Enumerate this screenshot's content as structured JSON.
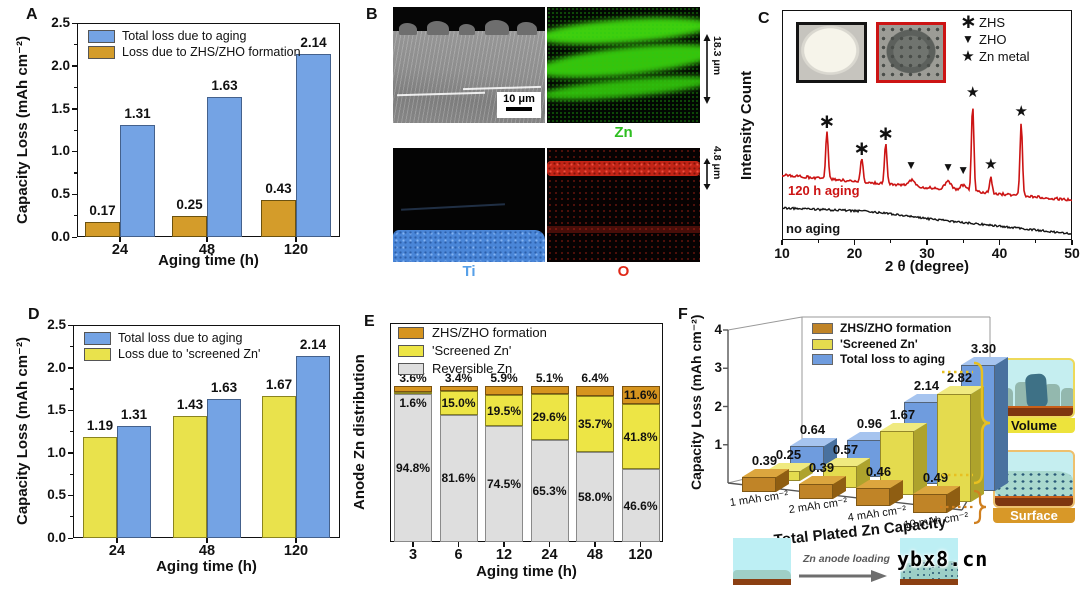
{
  "watermark": "ybx8.cn",
  "panels": {
    "B": {
      "tag": "B",
      "scale_bar": "10 μm",
      "label_zn": "Zn",
      "label_ti": "Ti",
      "label_o": "O",
      "thickness_zn_layer": "18.3 μm",
      "thickness_oxide_layer": "4.8 μm"
    },
    "F": {
      "inset_volume": "Volume",
      "inset_surface": "Surface",
      "bottom_caption": "Zn anode loading"
    }
  },
  "chart_data": [
    {
      "panel": "A",
      "type": "bar",
      "xlabel": "Aging time (h)",
      "ylabel": "Capacity Loss (mAh cm⁻²)",
      "ylim": [
        0,
        2.5
      ],
      "yticks": [
        0,
        0.5,
        1,
        1.5,
        2,
        2.5
      ],
      "categories": [
        "24",
        "48",
        "120"
      ],
      "series": [
        {
          "name": "Loss due to ZHS/ZHO formation",
          "color": "#D49C2A",
          "border": "#6b5210",
          "values": [
            0.17,
            0.25,
            0.43
          ]
        },
        {
          "name": "Total loss due to aging",
          "color": "#74A3E4",
          "border": "#44618C",
          "values": [
            1.31,
            1.63,
            2.14
          ]
        }
      ],
      "legend": [
        {
          "label": "Total loss due to aging",
          "color": "#74A3E4"
        },
        {
          "label": "Loss due to ZHS/ZHO formation",
          "color": "#D49C2A"
        }
      ]
    },
    {
      "panel": "C",
      "type": "line",
      "xlabel": "2 θ (degree)",
      "ylabel": "Intensity Count",
      "xlim": [
        10,
        50
      ],
      "xticks": [
        10,
        20,
        30,
        40,
        50
      ],
      "series": [
        {
          "name": "120 h aging",
          "color": "#CC1414"
        },
        {
          "name": "no aging",
          "color": "#141414"
        }
      ],
      "legend": [
        {
          "symbol": "∗",
          "label": "ZHS"
        },
        {
          "symbol": "▼",
          "label": "ZHO"
        },
        {
          "symbol": "★",
          "label": "Zn metal"
        }
      ],
      "peaks": [
        {
          "two_theta": 16.2,
          "height": 1.0,
          "phase": "ZHS"
        },
        {
          "two_theta": 21.0,
          "height": 0.5,
          "phase": "ZHS"
        },
        {
          "two_theta": 24.3,
          "height": 0.85,
          "phase": "ZHS"
        },
        {
          "two_theta": 27.8,
          "height": 0.13,
          "phase": "ZHO"
        },
        {
          "two_theta": 32.9,
          "height": 0.16,
          "phase": "ZHO"
        },
        {
          "two_theta": 35.0,
          "height": 0.11,
          "phase": "ZHO"
        },
        {
          "two_theta": 36.3,
          "height": 1.8,
          "phase": "Zn metal"
        },
        {
          "two_theta": 38.8,
          "height": 0.34,
          "phase": "Zn metal"
        },
        {
          "two_theta": 43.0,
          "height": 1.5,
          "phase": "Zn metal"
        }
      ]
    },
    {
      "panel": "D",
      "type": "bar",
      "xlabel": "Aging time (h)",
      "ylabel": "Capacity Loss (mAh cm⁻²)",
      "ylim": [
        0,
        2.5
      ],
      "yticks": [
        0,
        0.5,
        1,
        1.5,
        2,
        2.5
      ],
      "categories": [
        "24",
        "48",
        "120"
      ],
      "series": [
        {
          "name": "Loss due to 'screened Zn'",
          "color": "#E9E24C",
          "border": "#8a8420",
          "values": [
            1.19,
            1.43,
            1.67
          ]
        },
        {
          "name": "Total loss due to aging",
          "color": "#74A3E4",
          "border": "#44618C",
          "values": [
            1.31,
            1.63,
            2.14
          ]
        }
      ],
      "legend": [
        {
          "label": "Total loss due to aging",
          "color": "#74A3E4"
        },
        {
          "label": "Loss due to 'screened Zn'",
          "color": "#E9E24C"
        }
      ]
    },
    {
      "panel": "E",
      "type": "stacked-bar",
      "unit": "%",
      "xlabel": "Aging time (h)",
      "ylabel": "Anode Zn distribution",
      "categories": [
        "3",
        "6",
        "12",
        "24",
        "48",
        "120"
      ],
      "series": [
        {
          "name": "Reversible Zn",
          "color": "#DEDEDE",
          "border": "#8a8a8a",
          "values": [
            94.8,
            81.6,
            74.5,
            65.3,
            58.0,
            46.6
          ]
        },
        {
          "name": "'Screened Zn'",
          "color": "#EDE545",
          "border": "#8a8420",
          "values": [
            1.6,
            15.0,
            19.5,
            29.6,
            35.7,
            41.8
          ]
        },
        {
          "name": "ZHS/ZHO formation",
          "color": "#D6941E",
          "border": "#7a5210",
          "values": [
            3.6,
            3.4,
            5.9,
            5.1,
            6.4,
            11.6
          ]
        }
      ],
      "legend": [
        {
          "label": "ZHS/ZHO formation",
          "color": "#D6941E"
        },
        {
          "label": "'Screened Zn'",
          "color": "#EDE545"
        },
        {
          "label": "Reversible Zn",
          "color": "#DEDEDE"
        }
      ]
    },
    {
      "panel": "F",
      "type": "bar3d",
      "xlabel": "Total Plated Zn Capacity",
      "ylabel": "Capacity Loss (mAh cm⁻²)",
      "ylim": [
        0,
        4
      ],
      "yticks": [
        1,
        2,
        3,
        4
      ],
      "categories": [
        "1 mAh cm⁻²",
        "2 mAh cm⁻²",
        "4 mAh cm⁻²",
        "10 mAh cm⁻²"
      ],
      "series": [
        {
          "name": "ZHS/ZHO formation",
          "colors": {
            "front": "#C08427",
            "top": "#DCA63E",
            "side": "#8F5E12"
          },
          "values": [
            0.39,
            0.39,
            0.46,
            0.49
          ]
        },
        {
          "name": "'Screened Zn'",
          "colors": {
            "front": "#E4DB4E",
            "top": "#F0EA80",
            "side": "#AEA32C"
          },
          "values": [
            0.25,
            0.57,
            1.67,
            2.82
          ]
        },
        {
          "name": "Total loss to aging",
          "colors": {
            "front": "#6F9CDE",
            "top": "#A6C4EF",
            "side": "#49719F"
          },
          "values": [
            0.64,
            0.96,
            2.14,
            3.3
          ]
        }
      ],
      "legend": [
        {
          "label": "ZHS/ZHO formation",
          "color": "#C08427"
        },
        {
          "label": "'Screened Zn'",
          "color": "#E4DB4E"
        },
        {
          "label": "Total loss to aging",
          "color": "#6F9CDE"
        }
      ]
    }
  ]
}
